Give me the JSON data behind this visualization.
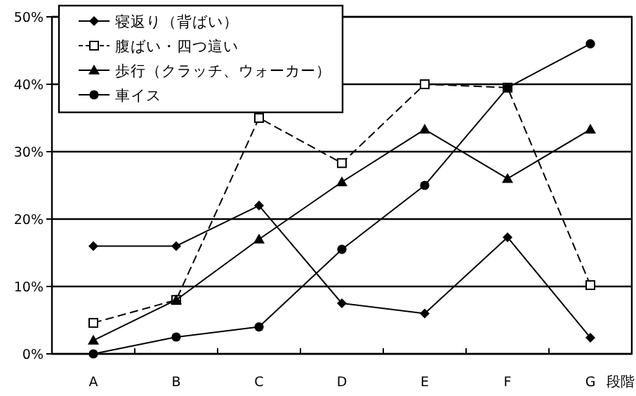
{
  "chart_data": {
    "type": "line",
    "categories": [
      "A",
      "B",
      "C",
      "D",
      "E",
      "F",
      "G"
    ],
    "xlabel": "段階",
    "series": [
      {
        "name": "寝返り（背ばい）",
        "color": "#000000",
        "marker": "diamond",
        "line_style": "solid",
        "values": [
          16,
          16,
          22,
          7.5,
          6,
          17.3,
          2.4
        ]
      },
      {
        "name": "腹ばい・四つ這い",
        "color": "#000000",
        "marker": "square",
        "line_style": "dashed",
        "values": [
          4.6,
          8,
          35,
          28.3,
          40,
          39.5,
          10.2
        ]
      },
      {
        "name": "歩行（クラッチ、ウォーカー）",
        "color": "#000000",
        "marker": "triangle",
        "line_style": "solid",
        "values": [
          2,
          8,
          17,
          25.5,
          33.3,
          26,
          33.3
        ]
      },
      {
        "name": "車イス",
        "color": "#000000",
        "marker": "circle",
        "line_style": "solid",
        "values": [
          0,
          2.5,
          4,
          15.5,
          25,
          39.5,
          46
        ]
      }
    ],
    "ylim": [
      0,
      50
    ],
    "yticks": [
      {
        "value": 0,
        "label": "0%"
      },
      {
        "value": 10,
        "label": "10%"
      },
      {
        "value": 20,
        "label": "20%"
      },
      {
        "value": 30,
        "label": "30%"
      },
      {
        "value": 40,
        "label": "40%"
      },
      {
        "value": 50,
        "label": "50%"
      }
    ],
    "grid": "y",
    "legend": "top left"
  }
}
